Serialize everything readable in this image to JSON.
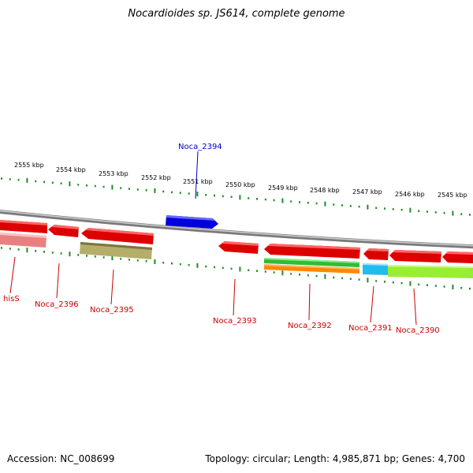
{
  "title": "Nocardioides sp. JS614, complete genome",
  "footer": {
    "accession": "Accession: NC_008699",
    "summary": "Topology: circular; Length: 4,985,871 bp; Genes: 4,700"
  },
  "colors": {
    "backbone": "#888888",
    "tick": "#228B22",
    "forward_label": "#0000CC",
    "reverse_label": "#CC0000"
  },
  "scale_labels": [
    "2555 kbp",
    "2554 kbp",
    "2553 kbp",
    "2552 kbp",
    "2551 kbp",
    "2550 kbp",
    "2549 kbp",
    "2548 kbp",
    "2547 kbp",
    "2546 kbp",
    "2545 kbp"
  ],
  "gene_labels": {
    "forward": [
      "Noca_2394"
    ],
    "reverse": [
      "hisS",
      "Noca_2396",
      "Noca_2395",
      "Noca_2393",
      "Noca_2392",
      "Noca_2391",
      "Noca_2390"
    ]
  }
}
